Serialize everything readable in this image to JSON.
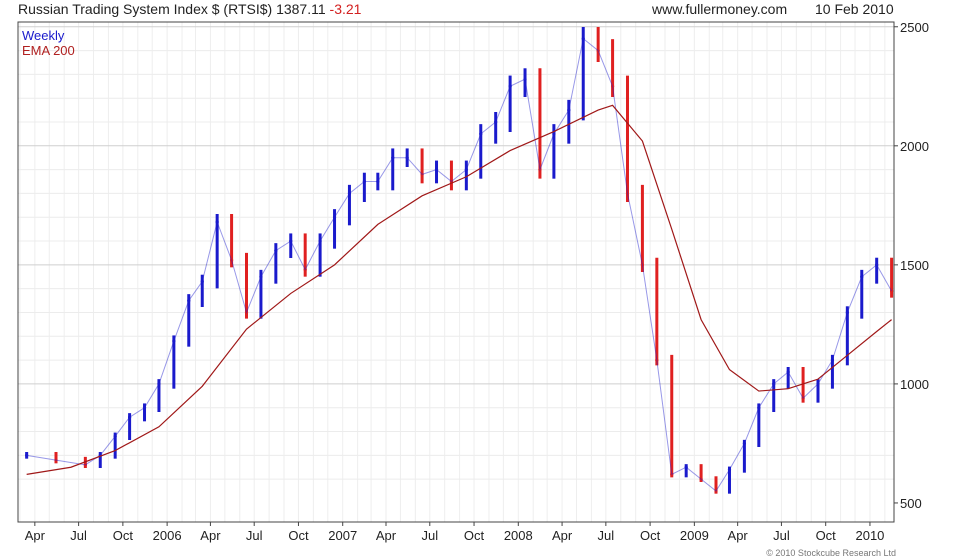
{
  "header": {
    "title": "Russian Trading System Index $ (RTSI$)",
    "last": "1387.11",
    "change": "-3.21",
    "source": "www.fullermoney.com",
    "date": "10 Feb 2010"
  },
  "legend": {
    "period": "Weekly",
    "indicator": "EMA 200"
  },
  "copyright": "© 2010 Stockcube Research Ltd",
  "colors": {
    "up": "#1a1acc",
    "down": "#e02020",
    "ema": "#a01818",
    "grid": "#d6d6d6",
    "axis": "#444444"
  },
  "chart_data": {
    "type": "line",
    "title": "Russian Trading System Index $ (RTSI$)",
    "frequency": "Weekly",
    "ylim": [
      420,
      2520
    ],
    "y_ticks": [
      500,
      1000,
      1500,
      2000,
      2500
    ],
    "x_tick_labels": [
      "Apr",
      "Jul",
      "Oct",
      "2006",
      "Apr",
      "Jul",
      "Oct",
      "2007",
      "Apr",
      "Jul",
      "Oct",
      "2008",
      "Apr",
      "Jul",
      "Oct",
      "2009",
      "Apr",
      "Jul",
      "Oct",
      "2010"
    ],
    "grid": true,
    "series": [
      {
        "name": "Weekly",
        "style": "weekly price bars, blue when rising and red when falling",
        "x": [
          "2005-03",
          "2005-05",
          "2005-07",
          "2005-08",
          "2005-09",
          "2005-10",
          "2005-11",
          "2005-12",
          "2006-01",
          "2006-02",
          "2006-03",
          "2006-04",
          "2006-05",
          "2006-06",
          "2006-07",
          "2006-08",
          "2006-09",
          "2006-10",
          "2006-11",
          "2006-12",
          "2007-01",
          "2007-02",
          "2007-03",
          "2007-04",
          "2007-05",
          "2007-06",
          "2007-07",
          "2007-08",
          "2007-09",
          "2007-10",
          "2007-11",
          "2007-12",
          "2008-01",
          "2008-02",
          "2008-03",
          "2008-04",
          "2008-05",
          "2008-06",
          "2008-07",
          "2008-08",
          "2008-09",
          "2008-10",
          "2008-11",
          "2008-12",
          "2009-01",
          "2009-02",
          "2009-03",
          "2009-04",
          "2009-05",
          "2009-06",
          "2009-07",
          "2009-08",
          "2009-09",
          "2009-10",
          "2009-11",
          "2009-12",
          "2010-01",
          "2010-02"
        ],
        "values": [
          700,
          680,
          660,
          700,
          780,
          860,
          900,
          1000,
          1180,
          1350,
          1430,
          1680,
          1520,
          1300,
          1450,
          1560,
          1600,
          1480,
          1600,
          1700,
          1800,
          1850,
          1850,
          1950,
          1950,
          1880,
          1900,
          1850,
          1900,
          2050,
          2100,
          2250,
          2280,
          1900,
          2050,
          2150,
          2450,
          2400,
          2250,
          1800,
          1500,
          1100,
          620,
          650,
          600,
          550,
          640,
          750,
          900,
          1000,
          1050,
          940,
          1000,
          1100,
          1300,
          1450,
          1500,
          1390
        ]
      },
      {
        "name": "EMA 200",
        "x": [
          "2005-03",
          "2005-06",
          "2005-09",
          "2005-12",
          "2006-03",
          "2006-06",
          "2006-09",
          "2006-12",
          "2007-03",
          "2007-06",
          "2007-09",
          "2007-12",
          "2008-03",
          "2008-06",
          "2008-07",
          "2008-09",
          "2008-11",
          "2009-01",
          "2009-03",
          "2009-05",
          "2009-07",
          "2009-09",
          "2009-11",
          "2010-01",
          "2010-02"
        ],
        "values": [
          620,
          650,
          720,
          820,
          990,
          1230,
          1380,
          1500,
          1670,
          1790,
          1870,
          1980,
          2060,
          2150,
          2170,
          2020,
          1650,
          1270,
          1060,
          970,
          980,
          1020,
          1120,
          1220,
          1270
        ]
      }
    ]
  }
}
